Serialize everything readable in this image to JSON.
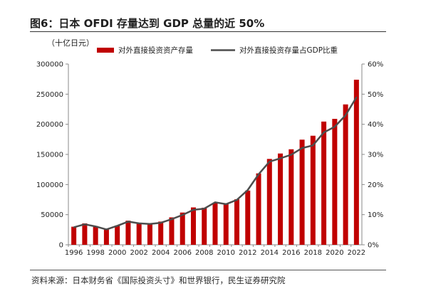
{
  "figure": {
    "title": "图6：日本 OFDI 存量达到 GDP 总量的近 50%",
    "unit_label": "（十亿日元）",
    "source": "资料来源：日本财务省《国际投资头寸》和世界银行，民生证券研究院"
  },
  "colors": {
    "bar": "#c00000",
    "line": "#4d4d4d",
    "axis": "#888888",
    "text": "#222222"
  },
  "chart_data": {
    "type": "bar",
    "categories": [
      "1996",
      "1997",
      "1998",
      "1999",
      "2000",
      "2001",
      "2002",
      "2003",
      "2004",
      "2005",
      "2006",
      "2007",
      "2008",
      "2009",
      "2010",
      "2011",
      "2012",
      "2013",
      "2014",
      "2015",
      "2016",
      "2017",
      "2018",
      "2019",
      "2020",
      "2021",
      "2022"
    ],
    "x_tick_labels": [
      "1996",
      "1998",
      "2000",
      "2002",
      "2004",
      "2006",
      "2008",
      "2010",
      "2012",
      "2014",
      "2016",
      "2018",
      "2020",
      "2022"
    ],
    "series": [
      {
        "name": "对外直接投资资产存量",
        "type": "bar",
        "axis": "left",
        "values": [
          30000,
          35500,
          31000,
          27000,
          32000,
          40000,
          36000,
          35500,
          38500,
          45500,
          53500,
          62000,
          61500,
          69500,
          68500,
          75500,
          90000,
          118500,
          142500,
          151500,
          158500,
          174500,
          181000,
          204500,
          209000,
          233000,
          274000
        ]
      },
      {
        "name": "对外直接投资存量占GDP比重",
        "type": "line",
        "axis": "right",
        "values": [
          5.8,
          6.8,
          6.1,
          5.1,
          6.3,
          7.7,
          7.1,
          6.9,
          7.3,
          8.5,
          9.9,
          11.6,
          12.0,
          14.1,
          13.5,
          14.9,
          18.2,
          23.4,
          27.6,
          28.7,
          29.9,
          32.1,
          33.0,
          37.3,
          39.2,
          43.0,
          49.0
        ]
      }
    ],
    "y_left": {
      "min": 0,
      "max": 300000,
      "ticks": [
        0,
        50000,
        100000,
        150000,
        200000,
        250000,
        300000
      ]
    },
    "y_right": {
      "min": 0,
      "max": 60,
      "ticks": [
        "0%",
        "10%",
        "20%",
        "30%",
        "40%",
        "50%",
        "60%"
      ]
    },
    "legend": "top-center",
    "grid": false
  }
}
